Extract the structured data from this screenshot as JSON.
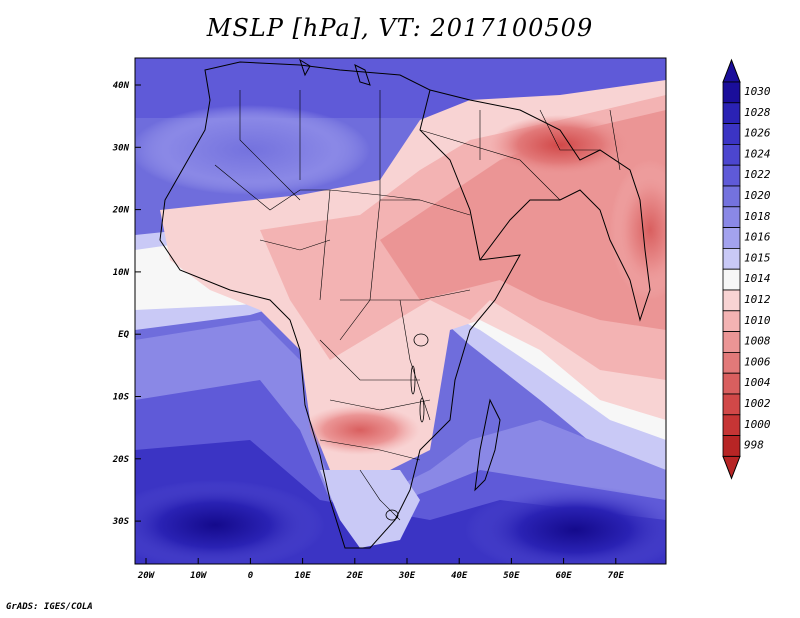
{
  "title": "MSLP [hPa], VT: 2017100509",
  "credit": "GrADS: IGES/COLA",
  "map": {
    "lat_labels": [
      "40N",
      "30N",
      "20N",
      "10N",
      "EQ",
      "10S",
      "20S",
      "30S"
    ],
    "lon_labels": [
      "20W",
      "10W",
      "0",
      "10E",
      "20E",
      "30E",
      "40E",
      "50E",
      "60E",
      "70E"
    ]
  },
  "colorbar": {
    "levels": [
      "1030",
      "1028",
      "1026",
      "1024",
      "1022",
      "1020",
      "1018",
      "1016",
      "1015",
      "1014",
      "1012",
      "1010",
      "1008",
      "1006",
      "1004",
      "1002",
      "1000",
      "998"
    ],
    "colors": [
      "#1a0e9a",
      "#2a22b4",
      "#3b34c4",
      "#4c46cf",
      "#5f5ad8",
      "#7472de",
      "#8a88e6",
      "#a3a2ee",
      "#c9c9f6",
      "#f7f7f7",
      "#f8d3d3",
      "#f3b3b3",
      "#eb9595",
      "#e27979",
      "#d95f5f",
      "#d14848",
      "#c63535",
      "#b72525"
    ]
  }
}
